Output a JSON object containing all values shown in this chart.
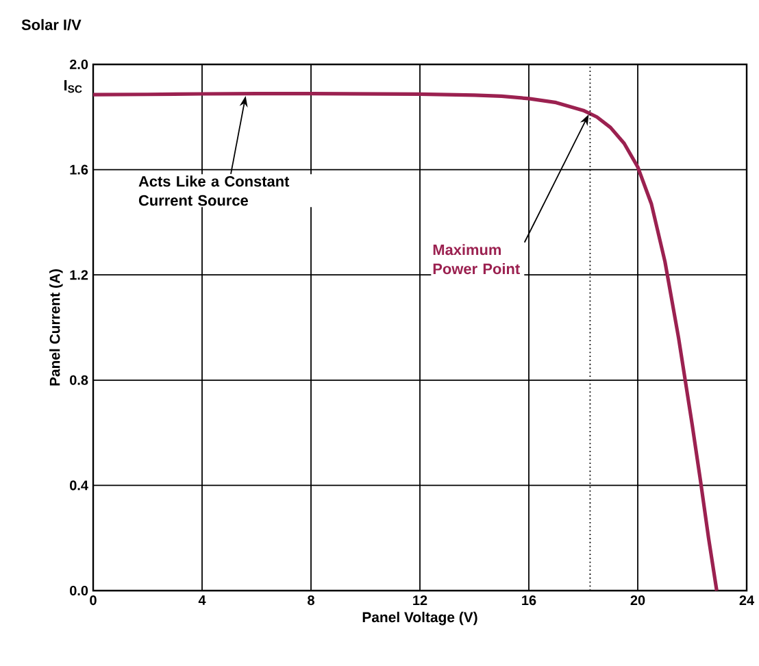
{
  "chart_data": {
    "type": "line",
    "title": "Solar I/V",
    "xlabel": "Panel Voltage (V)",
    "ylabel": "Panel Current (A)",
    "x": [
      0,
      2,
      4,
      6,
      8,
      10,
      12,
      14,
      15,
      16,
      17,
      18,
      18.5,
      19,
      19.5,
      20,
      20.5,
      21,
      21.5,
      22,
      22.3,
      22.6,
      22.9
    ],
    "series": [
      {
        "color": "#9b2150",
        "values": [
          1.885,
          1.886,
          1.888,
          1.889,
          1.889,
          1.888,
          1.887,
          1.883,
          1.879,
          1.87,
          1.855,
          1.825,
          1.8,
          1.76,
          1.7,
          1.61,
          1.47,
          1.25,
          0.96,
          0.63,
          0.42,
          0.2,
          0.0
        ]
      }
    ],
    "xlim": [
      0,
      24
    ],
    "ylim": [
      0,
      2
    ],
    "xticks": [
      0,
      4,
      8,
      12,
      16,
      20,
      24
    ],
    "yticks": [
      {
        "value": 0,
        "label": "0.0"
      },
      0.4,
      0.8,
      1.2,
      1.6,
      {
        "value": 2,
        "label": "2.0"
      }
    ],
    "grid": true,
    "marker": "none",
    "line_style": "solid",
    "ref_lines": [
      {
        "axis": "x",
        "value": 18.25,
        "line_style": "dotted",
        "color": "#000000"
      }
    ],
    "annotations": [
      {
        "text": "I$_{SC}$",
        "x": 0,
        "y": 1.885
      },
      {
        "text": "Acts Like a Constant Current Source",
        "x": 5.6,
        "y": 1.88
      },
      {
        "text": "Maximum Power Point",
        "x": 18.2,
        "y": 1.81
      }
    ]
  }
}
